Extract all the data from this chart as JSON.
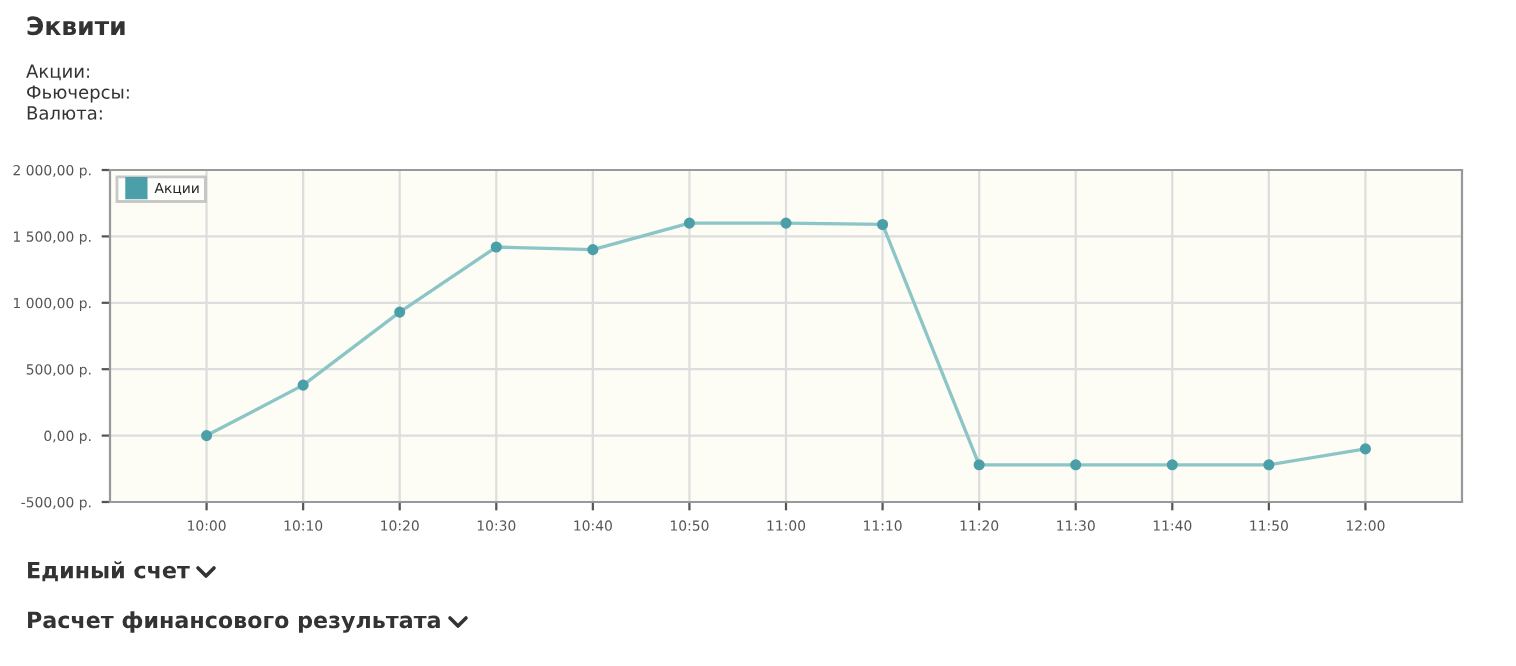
{
  "chart_data": {
    "type": "line",
    "title": "Эквити",
    "subtitle": "Акции:\nФьючерсы:\nВалюта:",
    "annotations": [
      "Единый счет",
      "Расчет финансового результата"
    ],
    "categories": [
      "10:00",
      "10:10",
      "10:20",
      "10:30",
      "10:40",
      "10:50",
      "11:00",
      "11:10",
      "11:20",
      "11:30",
      "11:40",
      "11:50",
      "12:00"
    ],
    "series": [
      {
        "name": "Акции",
        "color": "#4a9fa8",
        "values": [
          0,
          380,
          930,
          1420,
          1400,
          1600,
          1600,
          1590,
          -220,
          -220,
          -220,
          -220,
          -100
        ]
      }
    ],
    "ylim": [
      -500,
      2000
    ],
    "yticks": [
      {
        "value": -500,
        "label": "-500,00 р."
      },
      {
        "value": 0,
        "label": "0,00 р."
      },
      {
        "value": 500,
        "label": "500,00 р."
      },
      {
        "value": 1000,
        "label": "1 000,00 р."
      },
      {
        "value": 1500,
        "label": "1 500,00 р."
      },
      {
        "value": 2000,
        "label": "2 000,00 р."
      }
    ],
    "grid": true,
    "legend": "top left",
    "marker": "circle",
    "line_style": "solid"
  }
}
